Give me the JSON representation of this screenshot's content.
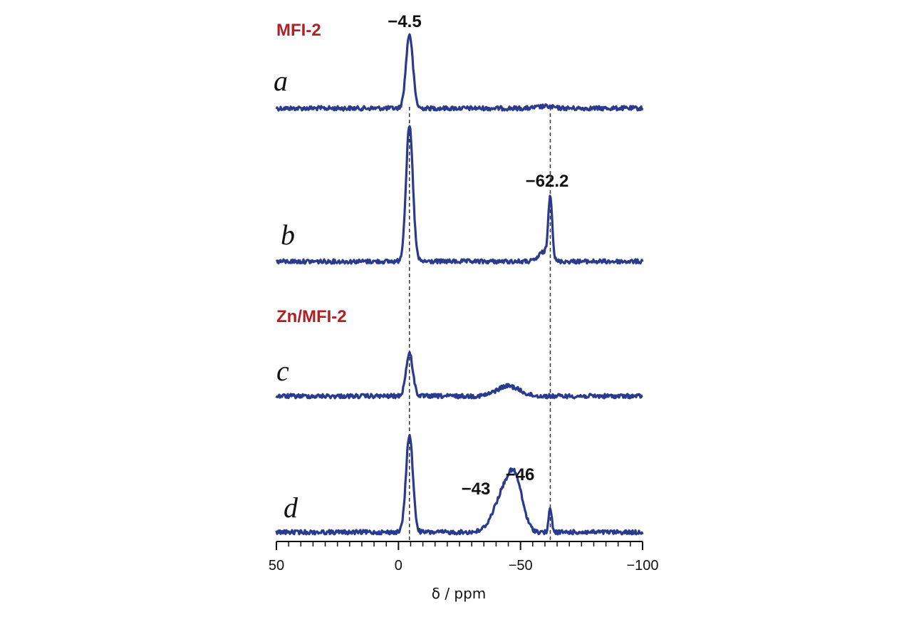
{
  "chart_data": {
    "type": "line",
    "title": "",
    "xlabel": "δ / ppm",
    "ylabel": "",
    "xlim": [
      50,
      -100
    ],
    "x_reversed": true,
    "grid": false,
    "colors": {
      "trace": "#2a3a8c",
      "group_label": "#b01f24",
      "guide": "#333333"
    },
    "x_ticks": [
      50,
      0,
      -50,
      -100
    ],
    "x_tick_labels": [
      "50",
      "0",
      "−50",
      "−100"
    ],
    "guide_lines": [
      -4.5,
      -62.2
    ],
    "groups": [
      {
        "label": "MFI-2",
        "traces": [
          "a",
          "b"
        ]
      },
      {
        "label": "Zn/MFI-2",
        "traces": [
          "c",
          "d"
        ]
      }
    ],
    "series": [
      {
        "label": "a",
        "peaks": [
          {
            "x": -4.5,
            "height": 1.0,
            "width": 1.4
          },
          {
            "x": -60,
            "height": 0.025,
            "width": 3.0
          }
        ]
      },
      {
        "label": "b",
        "peaks": [
          {
            "x": -4.5,
            "height": 1.0,
            "width": 1.4
          },
          {
            "x": -62.2,
            "height": 0.47,
            "width": 0.8
          },
          {
            "x": -59.5,
            "height": 0.07,
            "width": 2.0
          }
        ]
      },
      {
        "label": "c",
        "peaks": [
          {
            "x": -4.5,
            "height": 1.0,
            "width": 1.4
          },
          {
            "x": -43,
            "height": 0.14,
            "width": 4.0
          },
          {
            "x": -47,
            "height": 0.13,
            "width": 4.0
          }
        ]
      },
      {
        "label": "d",
        "peaks": [
          {
            "x": -4.5,
            "height": 1.0,
            "width": 1.4
          },
          {
            "x": -43,
            "height": 0.38,
            "width": 4.0
          },
          {
            "x": -48,
            "height": 0.43,
            "width": 3.0
          },
          {
            "x": -62.2,
            "height": 0.25,
            "width": 0.6
          }
        ]
      }
    ],
    "annotations": [
      {
        "text": "−4.5",
        "x": -4.5,
        "trace": "a"
      },
      {
        "text": "−62.2",
        "x": -62.2,
        "trace": "b"
      },
      {
        "text": "−43",
        "x": -43,
        "trace": "d"
      },
      {
        "text": "−46",
        "x": -46,
        "trace": "d"
      }
    ]
  }
}
